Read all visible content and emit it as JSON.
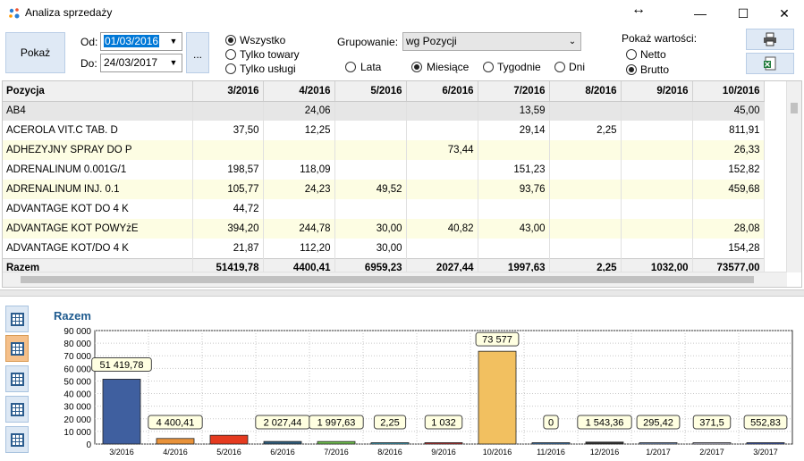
{
  "window": {
    "title": "Analiza sprzedaży",
    "move_icon": "↔",
    "minimize": "—",
    "maximize": "☐",
    "close": "✕"
  },
  "toolbar": {
    "show_label": "Pokaż",
    "from_label": "Od:",
    "from_value": "01/03/2016",
    "to_label": "Do:",
    "to_value": "24/03/2017",
    "dots_label": "...",
    "filter_options": [
      "Wszystko",
      "Tylko towary",
      "Tylko usługi"
    ],
    "filter_selected": 0,
    "grouping_label": "Grupowanie:",
    "grouping_value": "wg Pozycji",
    "period_options": [
      "Lata",
      "Miesiące",
      "Tygodnie",
      "Dni"
    ],
    "period_selected": 1,
    "values_label": "Pokaż wartości:",
    "values_options": [
      "Netto",
      "Brutto"
    ],
    "values_selected": 1,
    "print_icon": "printer-icon",
    "excel_icon": "excel-icon"
  },
  "grid": {
    "columns": [
      "Pozycja",
      "3/2016",
      "4/2016",
      "5/2016",
      "6/2016",
      "7/2016",
      "8/2016",
      "9/2016",
      "10/2016"
    ],
    "rows": [
      [
        "AB4",
        "",
        "24,06",
        "",
        "",
        "13,59",
        "",
        "",
        "45,00"
      ],
      [
        "ACEROLA VIT.C TAB. D",
        "37,50",
        "12,25",
        "",
        "",
        "29,14",
        "2,25",
        "",
        "811,91"
      ],
      [
        "ADHEZYJNY SPRAY DO P",
        "",
        "",
        "",
        "73,44",
        "",
        "",
        "",
        "26,33"
      ],
      [
        "ADRENALINUM 0.001G/1",
        "198,57",
        "118,09",
        "",
        "",
        "151,23",
        "",
        "",
        "152,82"
      ],
      [
        "ADRENALINUM INJ. 0.1",
        "105,77",
        "24,23",
        "49,52",
        "",
        "93,76",
        "",
        "",
        "459,68"
      ],
      [
        "ADVANTAGE KOT DO 4 K",
        "44,72",
        "",
        "",
        "",
        "",
        "",
        "",
        ""
      ],
      [
        "ADVANTAGE KOT POWYżE",
        "394,20",
        "244,78",
        "30,00",
        "40,82",
        "43,00",
        "",
        "",
        "28,08"
      ],
      [
        "ADVANTAGE KOT/DO 4 K",
        "21,87",
        "112,20",
        "30,00",
        "",
        "",
        "",
        "",
        "154,28"
      ]
    ],
    "footer": [
      "Razem",
      "51419,78",
      "4400,41",
      "6959,23",
      "2027,44",
      "1997,63",
      "2,25",
      "1032,00",
      "73577,00"
    ]
  },
  "chart_data": {
    "type": "bar",
    "title": "Razem",
    "categories": [
      "3/2016",
      "4/2016",
      "5/2016",
      "6/2016",
      "7/2016",
      "8/2016",
      "9/2016",
      "10/2016",
      "11/2016",
      "12/2016",
      "1/2017",
      "2/2017",
      "3/2017"
    ],
    "values": [
      51419.78,
      4400.41,
      6959.23,
      2027.44,
      1997.63,
      2.25,
      1032,
      73577,
      0,
      1543.36,
      295.42,
      371.5,
      552.83
    ],
    "data_labels": [
      "51 419,78",
      "4 400,41",
      "",
      "2 027,44",
      "1 997,63",
      "2,25",
      "1 032",
      "73 577",
      "0",
      "1 543,36",
      "295,42",
      "371,5",
      "552,83"
    ],
    "colors": [
      "#3f5f9f",
      "#e8923a",
      "#e53a1f",
      "#2f5f7f",
      "#6fbf4f",
      "#3fb0cf",
      "#cf2f2f",
      "#f2c060",
      "#3f7fbf",
      "#2f2f2f",
      "#7f9fcf",
      "#cfcfe8",
      "#3f5fbf"
    ],
    "yticks": [
      "0",
      "10 000",
      "20 000",
      "30 000",
      "40 000",
      "50 000",
      "60 000",
      "70 000",
      "80 000",
      "90 000"
    ],
    "ylim": [
      0,
      90000
    ],
    "grid": true
  }
}
